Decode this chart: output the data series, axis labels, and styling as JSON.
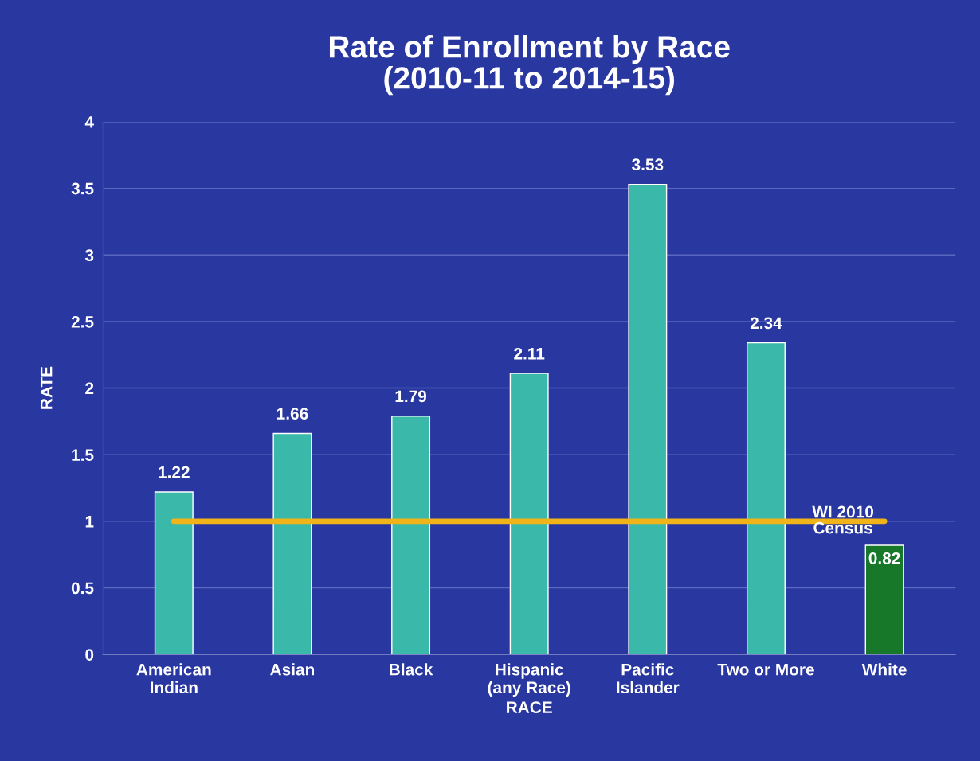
{
  "chart_data": {
    "type": "bar",
    "title": "Rate of Enrollment by Race\n(2010-11 to 2014-15)",
    "xlabel": "RACE",
    "ylabel": "RATE",
    "categories": [
      "American\nIndian",
      "Asian",
      "Black",
      "Hispanic\n(any Race)",
      "Pacific\nIslander",
      "Two or More",
      "White"
    ],
    "values": [
      1.22,
      1.66,
      1.79,
      2.11,
      3.53,
      2.34,
      0.82
    ],
    "colors": [
      "#3ab8aa",
      "#3ab8aa",
      "#3ab8aa",
      "#3ab8aa",
      "#3ab8aa",
      "#3ab8aa",
      "#17782a"
    ],
    "ylim": [
      0,
      4
    ],
    "yticks": [
      0,
      0.5,
      1,
      1.5,
      2,
      2.5,
      3,
      3.5,
      4
    ],
    "grid": "y",
    "data_labels": true,
    "ref_lines": [
      {
        "axis": "y",
        "value": 1,
        "label": "WI 2010\nCensus",
        "color": "#f0b418"
      }
    ]
  }
}
